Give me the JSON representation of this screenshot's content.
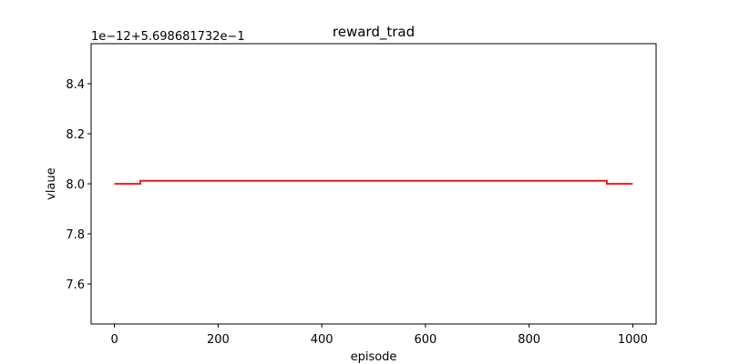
{
  "chart_data": {
    "type": "line",
    "title": "reward_trad",
    "xlabel": "episode",
    "ylabel": "vlaue",
    "offset_text": "1e−12+5.698681732e−1",
    "xlim": [
      -45,
      1045
    ],
    "ylim": [
      7.44,
      8.56
    ],
    "x_ticks": [
      0,
      200,
      400,
      600,
      800,
      1000
    ],
    "x_tick_labels": [
      "0",
      "200",
      "400",
      "600",
      "800",
      "1000"
    ],
    "y_ticks": [
      7.6,
      7.8,
      8.0,
      8.2,
      8.4
    ],
    "y_tick_labels": [
      "7.6",
      "7.8",
      "8.0",
      "8.2",
      "8.4"
    ],
    "grid": false,
    "series": [
      {
        "color": "#ff0000",
        "x": [
          0,
          50,
          50,
          950,
          950,
          1000
        ],
        "y": [
          8.0,
          8.0,
          8.012,
          8.012,
          8.0,
          8.0
        ]
      }
    ]
  }
}
